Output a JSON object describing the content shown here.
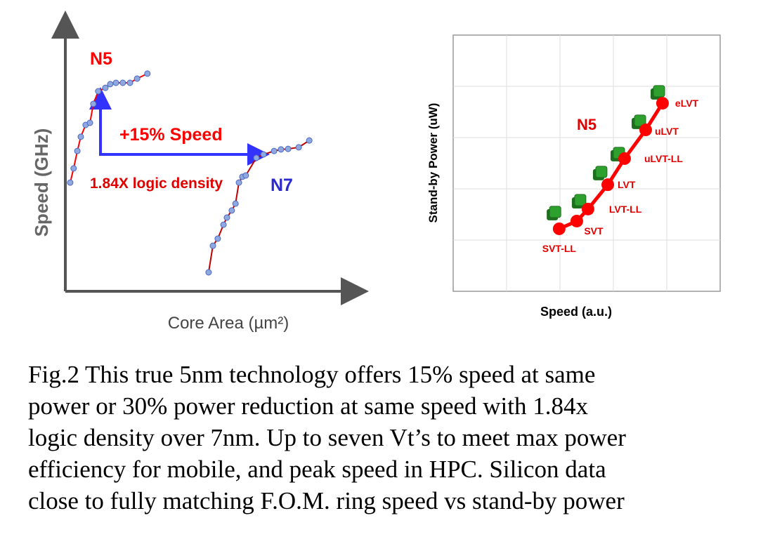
{
  "charts": [
    {
      "type": "scatter",
      "xlabel": "Core Area (µm²)",
      "ylabel": "Speed (GHz)",
      "xlim": [
        0,
        100
      ],
      "ylim": [
        0,
        100
      ],
      "annotations": [
        "+15% Speed",
        "1.84X logic density"
      ],
      "series": [
        {
          "name": "N5",
          "color": "#8fa8e0",
          "line_color": "#ff0000",
          "x": [
            1.7,
            2.9,
            4.2,
            5.4,
            7.1,
            8.6,
            9.8,
            11.5,
            14,
            15.7,
            17.7,
            20.1,
            22.6,
            25.1,
            28.7
          ],
          "values": [
            41.3,
            46.7,
            53.3,
            58.7,
            63.2,
            64,
            71.2,
            76,
            77.3,
            78.7,
            79.2,
            79.2,
            79.2,
            80.8,
            82.7
          ]
        },
        {
          "name": "N7",
          "color": "#8fa8e0",
          "line_color": "#c00000",
          "x": [
            50.1,
            51.6,
            53.3,
            55.3,
            56.5,
            58.2,
            59.5,
            60.7,
            61.9,
            63.1,
            66.8,
            69.3,
            73,
            75.4,
            77.9,
            81.6,
            85.3
          ],
          "values": [
            7.2,
            17.3,
            20,
            25.3,
            28,
            30.7,
            33.3,
            41.3,
            43.5,
            44,
            50.7,
            52,
            53.3,
            53.9,
            54.1,
            54.7,
            57.3
          ]
        }
      ]
    },
    {
      "type": "scatter",
      "xlabel": "Speed (a.u.)",
      "ylabel": "Stand-by Power  (uW)",
      "annotation": "N5",
      "xlim": [
        0,
        100
      ],
      "ylim": [
        0,
        100
      ],
      "xticks": [
        20,
        40,
        60,
        80
      ],
      "yticks": [
        20,
        40,
        60,
        80
      ],
      "grid": true,
      "series": [
        {
          "color": "#2ea02e",
          "marker": "square",
          "x": [
            38.2,
            47.6,
            55.5,
            62.1,
            70,
            77.1
          ],
          "values": [
            31,
            35.6,
            46.6,
            54,
            66.6,
            78.1
          ]
        },
        {
          "color": "#ff0000",
          "marker": "circle",
          "line": true,
          "x": [
            39.7,
            46.3,
            50.5,
            57.9,
            64.2,
            72.1,
            78.4
          ],
          "values": [
            24.4,
            27.4,
            32.1,
            41.6,
            51.8,
            63,
            73.4
          ],
          "labels": [
            "SVT-LL",
            "SVT",
            "LVT-LL",
            "LVT",
            "uLVT-LL",
            "uLVT",
            "eLVT"
          ]
        }
      ]
    }
  ],
  "caption": [
    "Fig.2 This true 5nm technology offers 15% speed at same",
    "power or 30% power reduction at same speed with 1.84x",
    "logic density over 7nm.  Up to seven Vt’s to meet max power",
    "efficiency for mobile, and peak speed in HPC.  Silicon data",
    "close to fully matching F.O.M. ring speed vs stand-by power"
  ]
}
